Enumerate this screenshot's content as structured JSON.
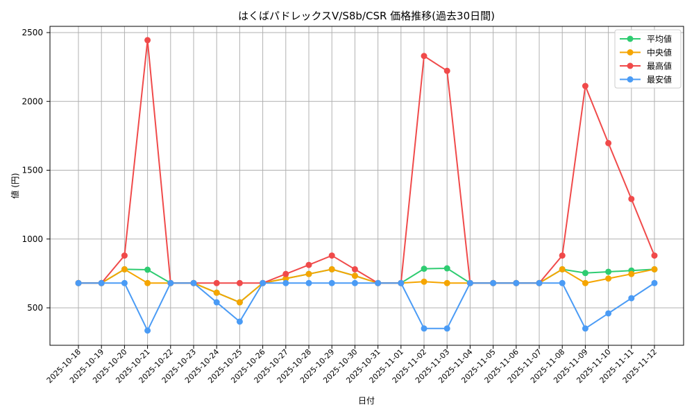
{
  "chart_data": {
    "type": "line",
    "title": "はくばパドレックスV/S8b/CSR 価格推移(過去30日間)",
    "xlabel": "日付",
    "ylabel": "値 (円)",
    "ylim": [
      225,
      2550
    ],
    "yticks": [
      500,
      1000,
      1500,
      2000,
      2500
    ],
    "grid": true,
    "legend_position": "upper right",
    "categories": [
      "2025-10-18",
      "2025-10-19",
      "2025-10-20",
      "2025-10-21",
      "2025-10-22",
      "2025-10-23",
      "2025-10-24",
      "2025-10-25",
      "2025-10-26",
      "2025-10-27",
      "2025-10-28",
      "2025-10-29",
      "2025-10-30",
      "2025-10-31",
      "2025-11-01",
      "2025-11-02",
      "2025-11-03",
      "2025-11-04",
      "2025-11-05",
      "2025-11-06",
      "2025-11-07",
      "2025-11-08",
      "2025-11-09",
      "2025-11-10",
      "2025-11-11",
      "2025-11-12"
    ],
    "series": [
      {
        "name": "平均値",
        "color": "#2ecc71",
        "values": [
          680,
          680,
          780,
          777,
          680,
          680,
          610,
          540,
          680,
          713,
          746,
          780,
          733,
          680,
          680,
          784,
          787,
          680,
          680,
          680,
          680,
          780,
          753,
          762,
          771,
          780
        ]
      },
      {
        "name": "中央値",
        "color": "#f5a500",
        "values": [
          680,
          680,
          780,
          680,
          680,
          680,
          610,
          540,
          680,
          713,
          746,
          780,
          733,
          680,
          680,
          690,
          680,
          680,
          680,
          680,
          680,
          780,
          680,
          713,
          746,
          780
        ]
      },
      {
        "name": "最高値",
        "color": "#f04a4a",
        "values": [
          680,
          680,
          880,
          2445,
          680,
          680,
          680,
          680,
          680,
          746,
          812,
          880,
          780,
          680,
          680,
          2330,
          2222,
          680,
          680,
          680,
          680,
          880,
          2112,
          1697,
          1291,
          880
        ]
      },
      {
        "name": "最安値",
        "color": "#4a9bf5",
        "values": [
          680,
          680,
          680,
          335,
          680,
          680,
          540,
          400,
          680,
          680,
          680,
          680,
          680,
          680,
          680,
          350,
          350,
          680,
          680,
          680,
          680,
          680,
          350,
          460,
          570,
          680
        ]
      }
    ]
  }
}
